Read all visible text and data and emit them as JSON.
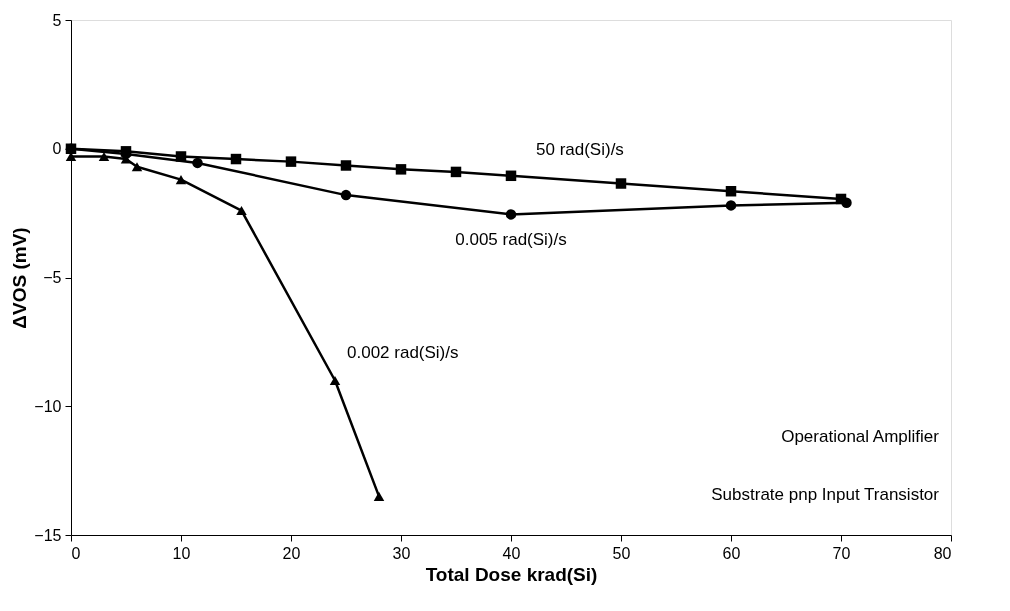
{
  "chart_data": {
    "type": "line",
    "xlabel": "Total Dose krad(Si)",
    "ylabel": "ΔVOS (mV)",
    "xlim": [
      0,
      80
    ],
    "xticks": [
      0,
      10,
      20,
      30,
      40,
      50,
      60,
      70,
      80
    ],
    "ylim": [
      -15,
      5
    ],
    "yticks": [
      -15,
      -10,
      -5,
      0,
      5
    ],
    "grid": false,
    "line_style": "solid",
    "series": [
      {
        "name": "50 rad(Si)/s",
        "color": "#000000",
        "marker": "square",
        "x": [
          0,
          5,
          10,
          15,
          20,
          25,
          30,
          35,
          40,
          50,
          60,
          70
        ],
        "values": [
          0,
          -0.1,
          -0.3,
          -0.4,
          -0.5,
          -0.65,
          -0.8,
          -0.9,
          -1.05,
          -1.35,
          -1.65,
          -1.95
        ]
      },
      {
        "name": "0.005 rad(Si)/s",
        "color": "#000000",
        "marker": "circle",
        "x": [
          0,
          5,
          11.5,
          25,
          40,
          60,
          70.5
        ],
        "values": [
          0,
          -0.2,
          -0.55,
          -1.8,
          -2.55,
          -2.2,
          -2.1
        ]
      },
      {
        "name": "0.002 rad(Si)/s",
        "color": "#000000",
        "marker": "triangle",
        "x": [
          0,
          3,
          5,
          6,
          10,
          15.5,
          24,
          28
        ],
        "values": [
          -0.3,
          -0.3,
          -0.4,
          -0.7,
          -1.2,
          -2.4,
          -9.0,
          -13.5
        ]
      }
    ],
    "annotations": [
      "Operational Amplifier",
      "Substrate pnp Input Transistor"
    ]
  }
}
